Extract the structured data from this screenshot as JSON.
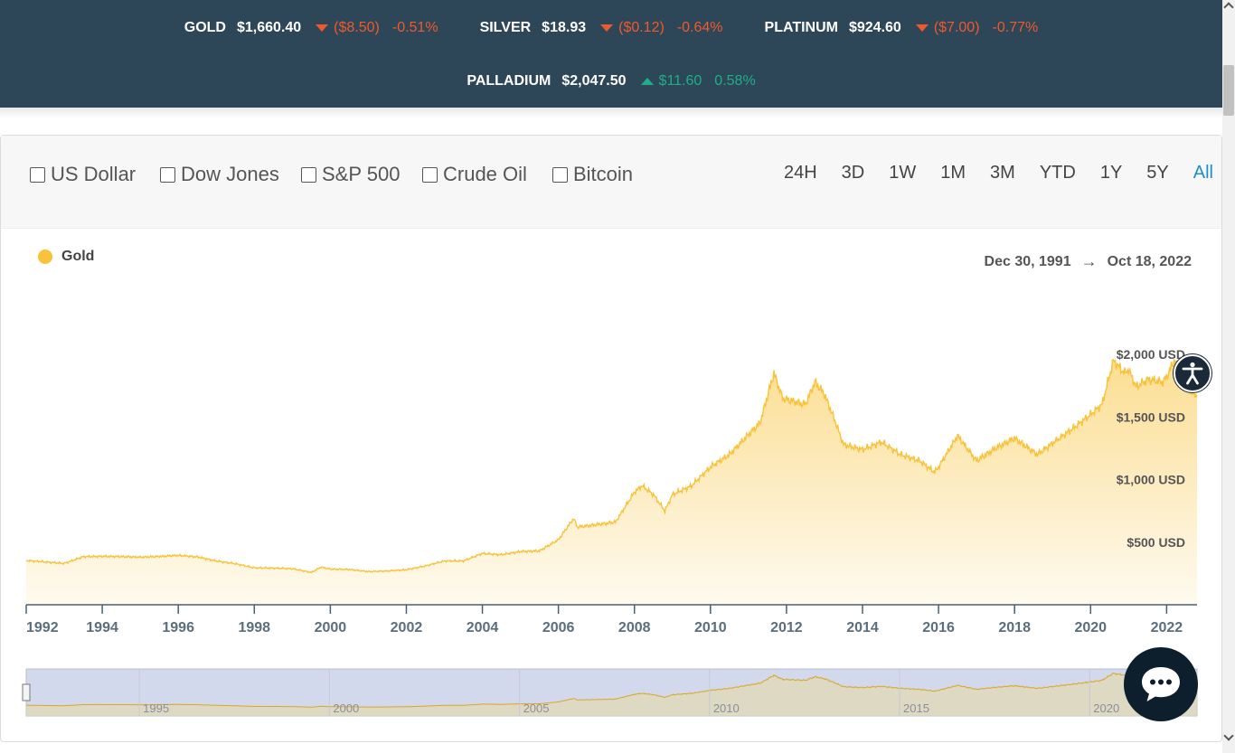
{
  "ticker": [
    {
      "name": "GOLD",
      "price": "$1,660.40",
      "change": "($8.50)",
      "pct": "-0.51%",
      "dir": "down"
    },
    {
      "name": "SILVER",
      "price": "$18.93",
      "change": "($0.12)",
      "pct": "-0.64%",
      "dir": "down"
    },
    {
      "name": "PLATINUM",
      "price": "$924.60",
      "change": "($7.00)",
      "pct": "-0.77%",
      "dir": "down"
    },
    {
      "name": "PALLADIUM",
      "price": "$2,047.50",
      "change": "$11.60",
      "pct": "0.58%",
      "dir": "up"
    }
  ],
  "compare": [
    "US Dollar",
    "Dow Jones",
    "S&P 500",
    "Crude Oil",
    "Bitcoin"
  ],
  "ranges": [
    "24H",
    "3D",
    "1W",
    "1M",
    "3M",
    "YTD",
    "1Y",
    "5Y",
    "All"
  ],
  "active_range": "All",
  "legend": "Gold",
  "date_range": {
    "start": "Dec 30, 1991",
    "arrow": "→",
    "end": "Oct 18, 2022"
  },
  "colors": {
    "header": "#2d4759",
    "down": "#f0592c",
    "up": "#1fae8a",
    "gold": "#f8c33a",
    "active": "#1a8fc9"
  },
  "icons": {
    "accessibility": "accessibility-icon",
    "chat": "chat-icon"
  },
  "chart_data": {
    "type": "area",
    "series": [
      {
        "name": "Gold",
        "x": [
          1992.0,
          1992.5,
          1993.0,
          1993.5,
          1994.0,
          1994.5,
          1995.0,
          1995.5,
          1996.0,
          1996.5,
          1997.0,
          1997.5,
          1998.0,
          1998.5,
          1999.0,
          1999.5,
          1999.75,
          2000.0,
          2000.5,
          2001.0,
          2001.5,
          2002.0,
          2002.5,
          2003.0,
          2003.5,
          2004.0,
          2004.5,
          2005.0,
          2005.5,
          2006.0,
          2006.4,
          2006.5,
          2007.0,
          2007.5,
          2008.0,
          2008.2,
          2008.5,
          2008.8,
          2009.0,
          2009.5,
          2010.0,
          2010.5,
          2011.0,
          2011.3,
          2011.67,
          2011.9,
          2012.0,
          2012.5,
          2012.75,
          2013.0,
          2013.3,
          2013.5,
          2014.0,
          2014.5,
          2015.0,
          2015.5,
          2015.9,
          2016.0,
          2016.5,
          2017.0,
          2017.5,
          2018.0,
          2018.6,
          2019.0,
          2019.5,
          2020.0,
          2020.3,
          2020.6,
          2020.9,
          2021.0,
          2021.2,
          2021.5,
          2021.9,
          2022.0,
          2022.2,
          2022.5,
          2022.8
        ],
        "y": [
          354,
          342,
          330,
          384,
          387,
          385,
          380,
          386,
          395,
          382,
          350,
          328,
          295,
          293,
          288,
          258,
          300,
          285,
          282,
          265,
          270,
          280,
          310,
          350,
          350,
          410,
          400,
          425,
          430,
          520,
          690,
          620,
          640,
          660,
          900,
          950,
          880,
          750,
          880,
          950,
          1100,
          1200,
          1360,
          1450,
          1850,
          1650,
          1640,
          1600,
          1780,
          1680,
          1450,
          1280,
          1240,
          1300,
          1200,
          1150,
          1060,
          1100,
          1350,
          1150,
          1250,
          1330,
          1200,
          1290,
          1400,
          1520,
          1600,
          1950,
          1850,
          1880,
          1740,
          1800,
          1780,
          1820,
          1950,
          1750,
          1660
        ]
      }
    ],
    "y_ticks": [
      "$500 USD",
      "$1,000 USD",
      "$1,500 USD",
      "$2,000 USD"
    ],
    "y_tick_values": [
      500,
      1000,
      1500,
      2000
    ],
    "x_ticks": [
      "1992",
      "1994",
      "1996",
      "1998",
      "2000",
      "2002",
      "2004",
      "2006",
      "2008",
      "2010",
      "2012",
      "2014",
      "2016",
      "2018",
      "2020",
      "2022"
    ],
    "x_tick_values": [
      1992,
      1994,
      1996,
      1998,
      2000,
      2002,
      2004,
      2006,
      2008,
      2010,
      2012,
      2014,
      2016,
      2018,
      2020,
      2022
    ],
    "xlim": [
      1992.0,
      2022.8
    ],
    "ylim": [
      0,
      2080
    ],
    "navigator_ticks": [
      "1995",
      "2000",
      "2005",
      "2010",
      "2015",
      "2020"
    ],
    "navigator_tick_values": [
      1995,
      2000,
      2005,
      2010,
      2015,
      2020
    ],
    "grid": false
  }
}
